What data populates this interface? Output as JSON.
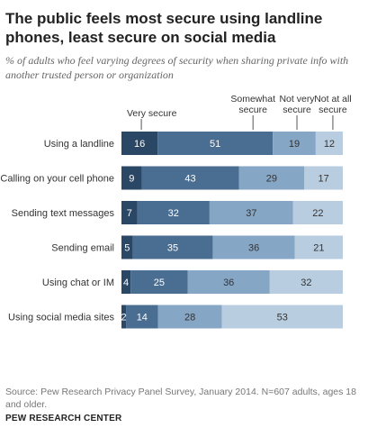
{
  "title": "The public feels most secure using landline phones, least secure on social media",
  "subtitle": "% of adults who feel varying degrees of security when sharing private info with another trusted person or organization",
  "source": "Source: Pew Research Privacy Panel Survey, January 2014. N=607 adults, ages 18 and older.",
  "organization": "PEW RESEARCH CENTER",
  "chart_data": {
    "type": "bar",
    "orientation": "horizontal",
    "stacked": true,
    "categories": [
      "Using a landline",
      "Calling on your cell phone",
      "Sending text messages",
      "Sending email",
      "Using chat or IM",
      "Using social media sites"
    ],
    "series": [
      {
        "name": "Very secure",
        "values": [
          16,
          9,
          7,
          5,
          4,
          2
        ],
        "color": "#2b4766"
      },
      {
        "name": "Somewhat secure",
        "values": [
          51,
          43,
          32,
          35,
          25,
          14
        ],
        "color": "#4a6d92"
      },
      {
        "name": "Not very secure",
        "values": [
          19,
          29,
          37,
          36,
          36,
          28
        ],
        "color": "#86a6c6"
      },
      {
        "name": "Not at all secure",
        "values": [
          12,
          17,
          22,
          21,
          32,
          53
        ],
        "color": "#b9cde0"
      }
    ],
    "legend_placement": "top",
    "grid": false
  }
}
